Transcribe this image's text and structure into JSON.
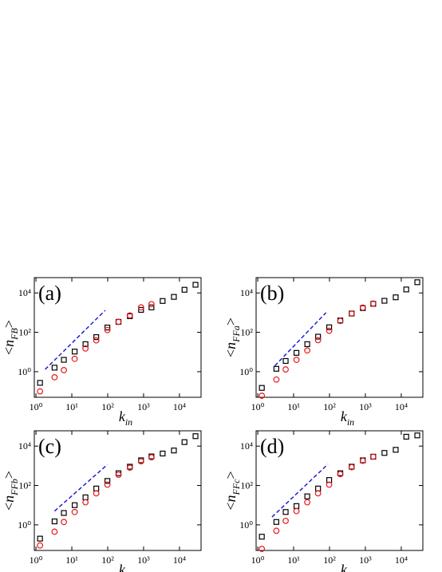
{
  "chart_data": [
    {
      "type": "scatter",
      "panel_label": "(a)",
      "xscale": "log",
      "yscale": "log",
      "xlabel": {
        "symbol": "k",
        "sub": "in"
      },
      "ylabel": {
        "prefix": "<",
        "symbol": "n",
        "sub": "FB",
        "suffix": ">"
      },
      "xlim": [
        0.9,
        40000
      ],
      "ylim": [
        0.05,
        60000
      ],
      "xticks": [
        {
          "value": 1,
          "label": "10⁰"
        },
        {
          "value": 10,
          "label": "10¹"
        },
        {
          "value": 100,
          "label": "10²"
        },
        {
          "value": 1000,
          "label": "10³"
        },
        {
          "value": 10000,
          "label": "10⁴"
        }
      ],
      "yticks": [
        {
          "value": 1,
          "label": "10⁰"
        },
        {
          "value": 100,
          "label": "10²"
        },
        {
          "value": 10000,
          "label": "10⁴"
        }
      ],
      "series": [
        {
          "marker": "square",
          "color": "#000000",
          "x": [
            1.3,
            3.3,
            6,
            12,
            24,
            48,
            98,
            200,
            415,
            850,
            1660,
            3400,
            7000,
            13800,
            28000
          ],
          "values": [
            0.27,
            1.6,
            4,
            10.5,
            25,
            57,
            175,
            340,
            660,
            1380,
            1850,
            3900,
            6300,
            14500,
            26000
          ]
        },
        {
          "marker": "circle",
          "color": "#e8161b",
          "x": [
            1.3,
            3.3,
            6,
            12,
            24,
            48,
            98,
            200,
            415,
            850,
            1660
          ],
          "values": [
            0.1,
            0.52,
            1.2,
            4.5,
            15,
            39,
            130,
            340,
            720,
            1850,
            2700
          ]
        }
      ],
      "guide": {
        "color": "#1f1fd6",
        "x": [
          1.8,
          85
        ],
        "values": [
          1.3,
          1300
        ]
      }
    },
    {
      "type": "scatter",
      "panel_label": "(b)",
      "xscale": "log",
      "yscale": "log",
      "xlabel": {
        "symbol": "k",
        "sub": "in"
      },
      "ylabel": {
        "prefix": "<",
        "symbol": "n",
        "sub": "FFa",
        "suffix": ">"
      },
      "xlim": [
        0.9,
        40000
      ],
      "ylim": [
        0.05,
        60000
      ],
      "xticks": [
        {
          "value": 1,
          "label": "10⁰"
        },
        {
          "value": 10,
          "label": "10¹"
        },
        {
          "value": 100,
          "label": "10²"
        },
        {
          "value": 1000,
          "label": "10³"
        },
        {
          "value": 10000,
          "label": "10⁴"
        }
      ],
      "yticks": [
        {
          "value": 1,
          "label": "10⁰"
        },
        {
          "value": 100,
          "label": "10²"
        },
        {
          "value": 10000,
          "label": "10⁴"
        }
      ],
      "series": [
        {
          "marker": "square",
          "color": "#000000",
          "x": [
            1.3,
            3.3,
            6,
            12,
            24,
            48,
            98,
            200,
            415,
            850,
            1660,
            3400,
            7000,
            13800,
            28000
          ],
          "values": [
            0.15,
            1.4,
            3.5,
            9,
            25,
            60,
            180,
            400,
            900,
            1700,
            2800,
            4000,
            6000,
            15000,
            35000
          ]
        },
        {
          "marker": "circle",
          "color": "#e8161b",
          "x": [
            1.3,
            3.3,
            6,
            12,
            24,
            48,
            98,
            200,
            415,
            850,
            1660
          ],
          "values": [
            0.06,
            0.4,
            1.3,
            4,
            12,
            40,
            120,
            380,
            900,
            1800,
            2900
          ]
        }
      ],
      "guide": {
        "color": "#1f1fd6",
        "x": [
          3,
          80
        ],
        "values": [
          2,
          1000
        ]
      }
    },
    {
      "type": "scatter",
      "panel_label": "(c)",
      "xscale": "log",
      "yscale": "log",
      "xlabel": {
        "symbol": "k",
        "sub": "in"
      },
      "ylabel": {
        "prefix": "<",
        "symbol": "n",
        "sub": "FFb",
        "suffix": ">"
      },
      "xlim": [
        0.9,
        40000
      ],
      "ylim": [
        0.05,
        60000
      ],
      "xticks": [
        {
          "value": 1,
          "label": "10⁰"
        },
        {
          "value": 10,
          "label": "10¹"
        },
        {
          "value": 100,
          "label": "10²"
        },
        {
          "value": 1000,
          "label": "10³"
        },
        {
          "value": 10000,
          "label": "10⁴"
        }
      ],
      "yticks": [
        {
          "value": 1,
          "label": "10⁰"
        },
        {
          "value": 100,
          "label": "10²"
        },
        {
          "value": 10000,
          "label": "10⁴"
        }
      ],
      "series": [
        {
          "marker": "square",
          "color": "#000000",
          "x": [
            1.3,
            3.3,
            6,
            12,
            24,
            48,
            98,
            200,
            415,
            850,
            1660,
            3400,
            7000,
            13800,
            28000
          ],
          "values": [
            0.2,
            1.5,
            4,
            10,
            25,
            70,
            170,
            420,
            900,
            1900,
            3000,
            4200,
            6000,
            16000,
            32000
          ]
        },
        {
          "marker": "circle",
          "color": "#e8161b",
          "x": [
            1.3,
            3.3,
            6,
            12,
            24,
            48,
            98,
            200,
            415,
            850,
            1660
          ],
          "values": [
            0.09,
            0.45,
            1.4,
            4.5,
            14,
            40,
            110,
            350,
            800,
            1700,
            2700
          ]
        }
      ],
      "guide": {
        "color": "#1f1fd6",
        "x": [
          3.3,
          98
        ],
        "values": [
          5,
          1150
        ]
      }
    },
    {
      "type": "scatter",
      "panel_label": "(d)",
      "xscale": "log",
      "yscale": "log",
      "xlabel": {
        "symbol": "k",
        "sub": "in"
      },
      "ylabel": {
        "prefix": "<",
        "symbol": "n",
        "sub": "FFc",
        "suffix": ">"
      },
      "xlim": [
        0.9,
        40000
      ],
      "ylim": [
        0.05,
        60000
      ],
      "xticks": [
        {
          "value": 1,
          "label": "10⁰"
        },
        {
          "value": 10,
          "label": "10¹"
        },
        {
          "value": 100,
          "label": "10²"
        },
        {
          "value": 1000,
          "label": "10³"
        },
        {
          "value": 10000,
          "label": "10⁴"
        }
      ],
      "yticks": [
        {
          "value": 1,
          "label": "10⁰"
        },
        {
          "value": 100,
          "label": "10²"
        },
        {
          "value": 10000,
          "label": "10⁴"
        }
      ],
      "series": [
        {
          "marker": "square",
          "color": "#000000",
          "x": [
            1.3,
            3.3,
            6,
            12,
            24,
            48,
            98,
            200,
            415,
            850,
            1660,
            3400,
            7000,
            13800,
            28000
          ],
          "values": [
            0.25,
            1.4,
            4.5,
            9,
            28,
            70,
            190,
            420,
            900,
            1900,
            2900,
            4500,
            6500,
            30000,
            35000
          ]
        },
        {
          "marker": "circle",
          "color": "#e8161b",
          "x": [
            1.3,
            3.3,
            6,
            12,
            24,
            48,
            98,
            200,
            415,
            850,
            1660
          ],
          "values": [
            0.06,
            0.5,
            1.6,
            5,
            14,
            40,
            110,
            380,
            850,
            1800,
            2900
          ]
        }
      ],
      "guide": {
        "color": "#1f1fd6",
        "x": [
          2.5,
          90
        ],
        "values": [
          2.5,
          1200
        ]
      }
    }
  ]
}
